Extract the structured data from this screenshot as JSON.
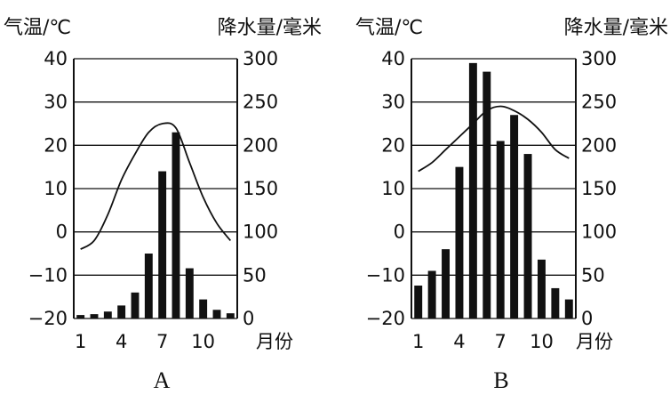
{
  "chart_data": [
    {
      "type": "bar+line",
      "panel_label": "A",
      "y_left_title": "气温/℃",
      "y_right_title": "降水量/毫米",
      "x_unit_label": "月份",
      "x_ticks": [
        "1",
        "4",
        "7",
        "10"
      ],
      "y_left_ticks": [
        "40",
        "30",
        "20",
        "10",
        "0",
        "−10",
        "−20"
      ],
      "y_right_ticks": [
        "300",
        "250",
        "200",
        "150",
        "100",
        "50",
        "0"
      ],
      "temp_range": [
        -20,
        40
      ],
      "precip_range": [
        0,
        300
      ],
      "months": [
        1,
        2,
        3,
        4,
        5,
        6,
        7,
        8,
        9,
        10,
        11,
        12
      ],
      "precipitation": [
        4,
        5,
        8,
        15,
        30,
        75,
        170,
        215,
        58,
        22,
        10,
        6
      ],
      "temperature": [
        -4,
        -2,
        4,
        12,
        18,
        23,
        25,
        24,
        16,
        8,
        2,
        -2
      ],
      "grid": true
    },
    {
      "type": "bar+line",
      "panel_label": "B",
      "y_left_title": "气温/℃",
      "y_right_title": "降水量/毫米",
      "x_unit_label": "月份",
      "x_ticks": [
        "1",
        "4",
        "7",
        "10"
      ],
      "y_left_ticks": [
        "40",
        "30",
        "20",
        "10",
        "0",
        "−10",
        "−20"
      ],
      "y_right_ticks": [
        "300",
        "250",
        "200",
        "150",
        "100",
        "50",
        "0"
      ],
      "temp_range": [
        -20,
        40
      ],
      "precip_range": [
        0,
        300
      ],
      "months": [
        1,
        2,
        3,
        4,
        5,
        6,
        7,
        8,
        9,
        10,
        11,
        12
      ],
      "precipitation": [
        38,
        55,
        80,
        175,
        295,
        285,
        205,
        235,
        190,
        68,
        35,
        22
      ],
      "temperature": [
        14,
        16,
        19,
        22,
        25,
        28,
        29,
        28,
        26,
        23,
        19,
        17
      ],
      "grid": true
    }
  ]
}
